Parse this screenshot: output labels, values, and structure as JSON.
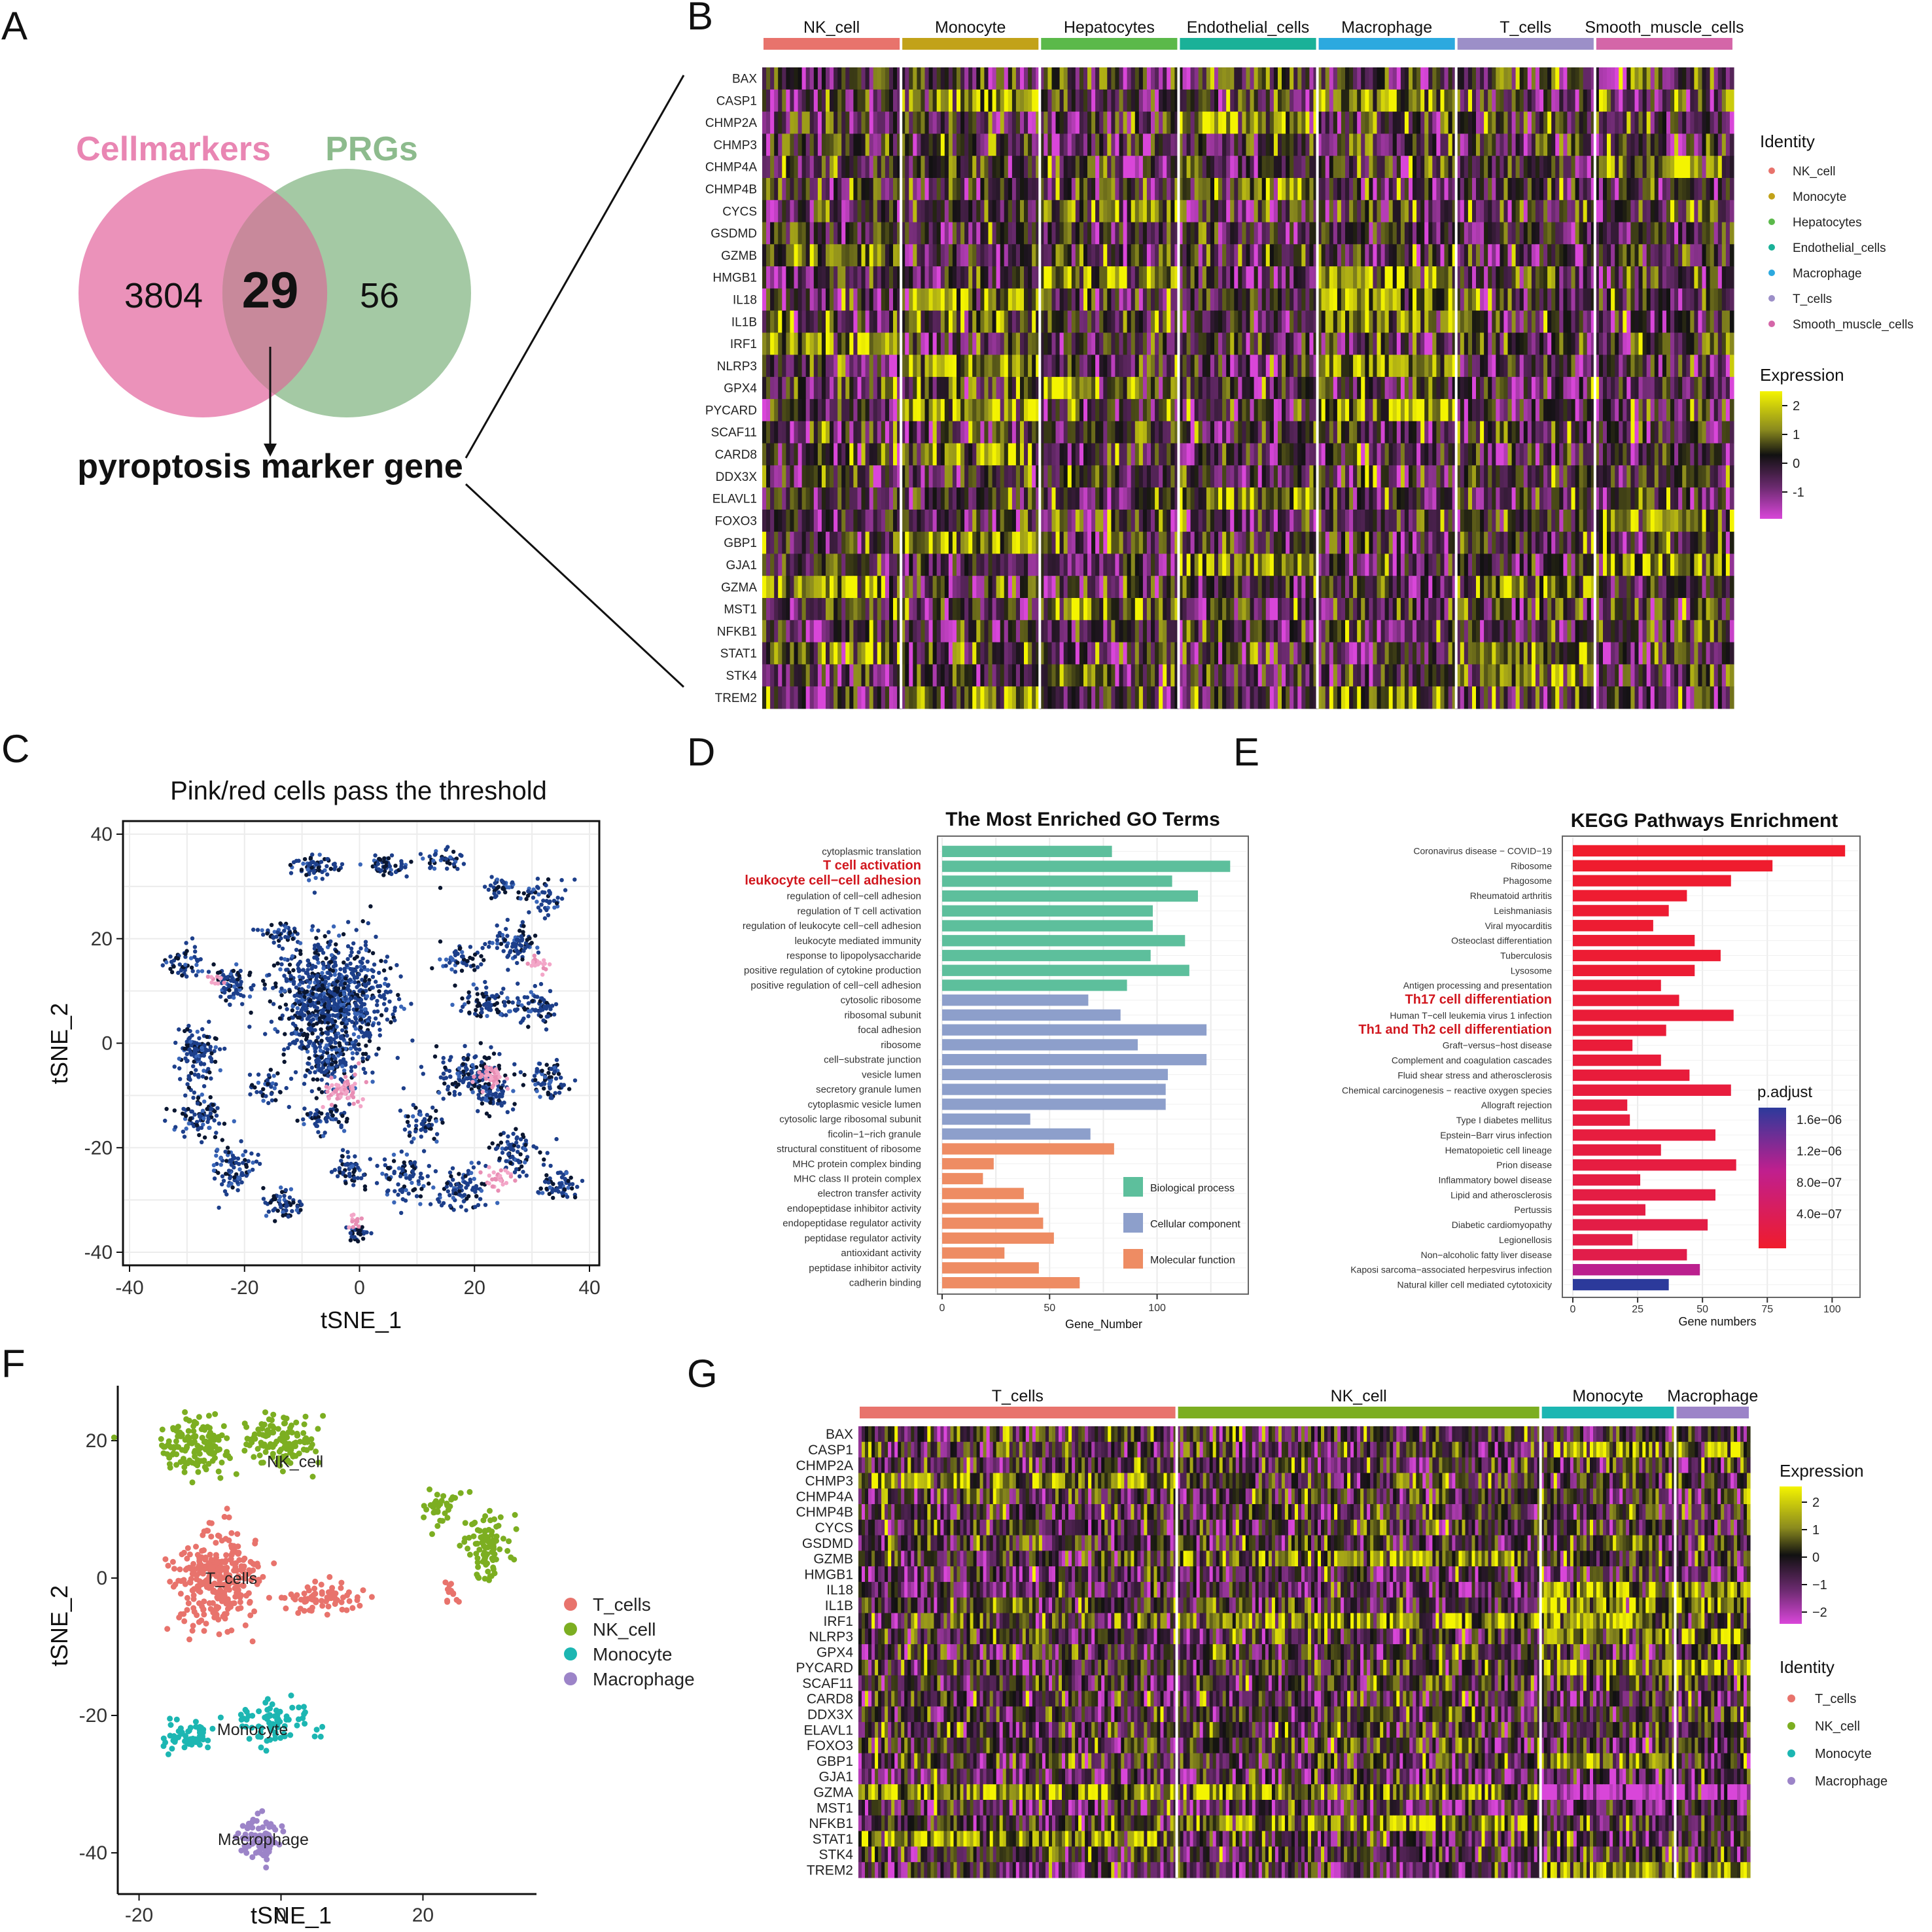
{
  "colors": {
    "nk_cell": "#E8736C",
    "monocyte": "#C2A219",
    "hepatocytes": "#5BB94A",
    "endothelial_cells": "#1AB198",
    "macrophage": "#2CA9DF",
    "t_cells": "#9C8FC8",
    "smooth_muscle_cells": "#D466A8",
    "venn_left": "#E986B3",
    "venn_right": "#8DBB8D",
    "go_bp": "#5DBF9C",
    "go_cc": "#8D9FCB",
    "go_mf": "#EE8C63",
    "f_tcells": "#E8736C",
    "f_nk": "#7CAE21",
    "f_mono": "#1CB6B2",
    "f_macro": "#9C84C8",
    "highlight_red": "#D1171E"
  },
  "panels": {
    "A": "A",
    "B": "B",
    "C": "C",
    "D": "D",
    "E": "E",
    "F": "F",
    "G": "G"
  },
  "panel_a": {
    "left_set": "Cellmarkers",
    "right_set": "PRGs",
    "left_only": "3804",
    "overlap": "29",
    "right_only": "56",
    "caption": "pyroptosis marker gene"
  },
  "genes": [
    "BAX",
    "CASP1",
    "CHMP2A",
    "CHMP3",
    "CHMP4A",
    "CHMP4B",
    "CYCS",
    "GSDMD",
    "GZMB",
    "HMGB1",
    "IL18",
    "IL1B",
    "IRF1",
    "NLRP3",
    "GPX4",
    "PYCARD",
    "SCAF11",
    "CARD8",
    "DDX3X",
    "ELAVL1",
    "FOXO3",
    "GBP1",
    "GJA1",
    "GZMA",
    "MST1",
    "NFKB1",
    "STAT1",
    "STK4",
    "TREM2"
  ],
  "panel_b": {
    "groups": [
      "NK_cell",
      "Monocyte",
      "Hepatocytes",
      "Endothelial_cells",
      "Macrophage",
      "T_cells",
      "Smooth_muscle_cells"
    ],
    "identity_title": "Identity",
    "identity_items": [
      "NK_cell",
      "Monocyte",
      "Hepatocytes",
      "Endothelial_cells",
      "Macrophage",
      "T_cells",
      "Smooth_muscle_cells"
    ],
    "expression_title": "Expression",
    "expression_ticks": [
      "2",
      "1",
      "0",
      "-1"
    ]
  },
  "panel_c": {
    "title": "Pink/red cells pass the threshold",
    "xlabel": "tSNE_1",
    "ylabel": "tSNE_2",
    "xticks": [
      "-40",
      "-20",
      "0",
      "20",
      "40"
    ],
    "yticks": [
      "40",
      "20",
      "0",
      "-20",
      "-40"
    ]
  },
  "panel_g": {
    "groups": [
      "T_cells",
      "NK_cell",
      "Monocyte",
      "Macrophage"
    ],
    "expression_title": "Expression",
    "expression_ticks": [
      "2",
      "1",
      "0",
      "−1",
      "−2"
    ],
    "identity_title": "Identity",
    "identity_items": [
      "T_cells",
      "NK_cell",
      "Monocyte",
      "Macrophage"
    ]
  },
  "chart_data": [
    {
      "type": "bar",
      "panel": "D",
      "title": "The Most Enriched GO Terms",
      "xlabel": "Gene_Number",
      "ylabel": "",
      "xlim": [
        0,
        140
      ],
      "xticks": [
        "0",
        "50",
        "100"
      ],
      "categories": [
        "cytoplasmic translation",
        "T cell activation",
        "leukocyte cell−cell adhesion",
        "regulation of cell−cell adhesion",
        "regulation of T cell activation",
        "regulation of leukocyte cell−cell adhesion",
        "leukocyte mediated immunity",
        "response to lipopolysaccharide",
        "positive regulation of cytokine production",
        "positive regulation of cell−cell adhesion",
        "cytosolic ribosome",
        "ribosomal subunit",
        "focal adhesion",
        "ribosome",
        "cell−substrate junction",
        "vesicle lumen",
        "secretory granule lumen",
        "cytoplasmic vesicle lumen",
        "cytosolic large ribosomal subunit",
        "ficolin−1−rich granule",
        "structural constituent of ribosome",
        "MHC protein complex binding",
        "MHC class II protein complex",
        "electron transfer activity",
        "endopeptidase inhibitor activity",
        "endopeptidase regulator activity",
        "peptidase regulator activity",
        "antioxidant activity",
        "peptidase inhibitor activity",
        "cadherin binding"
      ],
      "values": [
        79,
        134,
        107,
        119,
        98,
        98,
        113,
        97,
        115,
        86,
        68,
        83,
        123,
        91,
        123,
        105,
        104,
        104,
        41,
        69,
        80,
        24,
        19,
        38,
        45,
        47,
        52,
        29,
        45,
        64
      ],
      "ontology": [
        "BP",
        "BP",
        "BP",
        "BP",
        "BP",
        "BP",
        "BP",
        "BP",
        "BP",
        "BP",
        "CC",
        "CC",
        "CC",
        "CC",
        "CC",
        "CC",
        "CC",
        "CC",
        "CC",
        "CC",
        "MF",
        "MF",
        "MF",
        "MF",
        "MF",
        "MF",
        "MF",
        "MF",
        "MF",
        "MF"
      ],
      "highlighted": [
        "T cell activation",
        "leukocyte cell−cell adhesion"
      ],
      "legend": [
        "Biological process",
        "Cellular component",
        "Molecular function"
      ]
    },
    {
      "type": "bar",
      "panel": "E",
      "title": "KEGG Pathways Enrichment",
      "xlabel": "Gene numbers",
      "ylabel": "",
      "xlim": [
        0,
        110
      ],
      "xticks": [
        "0",
        "25",
        "50",
        "75",
        "100"
      ],
      "categories": [
        "Coronavirus disease − COVID−19",
        "Ribosome",
        "Phagosome",
        "Rheumatoid arthritis",
        "Leishmaniasis",
        "Viral myocarditis",
        "Osteoclast differentiation",
        "Tuberculosis",
        "Lysosome",
        "Antigen processing and presentation",
        "Th17 cell differentiation",
        "Human T−cell leukemia virus 1 infection",
        "Th1 and Th2 cell differentiation",
        "Graft−versus−host disease",
        "Complement and coagulation cascades",
        "Fluid shear stress and atherosclerosis",
        "Chemical carcinogenesis − reactive oxygen species",
        "Allograft rejection",
        "Type I diabetes mellitus",
        "Epstein−Barr virus infection",
        "Hematopoietic cell lineage",
        "Prion disease",
        "Inflammatory bowel disease",
        "Lipid and atherosclerosis",
        "Pertussis",
        "Diabetic cardiomyopathy",
        "Legionellosis",
        "Non−alcoholic fatty liver disease",
        "Kaposi sarcoma−associated herpesvirus infection",
        "Natural killer cell mediated cytotoxicity"
      ],
      "values": [
        105,
        77,
        61,
        44,
        37,
        31,
        47,
        57,
        47,
        34,
        41,
        62,
        36,
        23,
        34,
        45,
        61,
        21,
        22,
        55,
        34,
        63,
        26,
        55,
        28,
        52,
        23,
        44,
        49,
        37
      ],
      "padj": [
        2e-07,
        2.2e-07,
        2.3e-07,
        2.4e-07,
        2.5e-07,
        2.5e-07,
        2.6e-07,
        2.6e-07,
        2.7e-07,
        2.8e-07,
        2.9e-07,
        3e-07,
        3e-07,
        3.1e-07,
        3.2e-07,
        3.3e-07,
        3.4e-07,
        3.5e-07,
        3.5e-07,
        3.6e-07,
        3.7e-07,
        3.8e-07,
        3.9e-07,
        4e-07,
        4.1e-07,
        4.2e-07,
        4.3e-07,
        4.5e-07,
        1.05e-06,
        1.7e-06
      ],
      "highlighted": [
        "Th17 cell differentiation",
        "Th1 and Th2 cell differentiation"
      ],
      "colorbar_title": "p.adjust",
      "colorbar_ticks": [
        "1.6e−06",
        "1.2e−06",
        "8.0e−07",
        "4.0e−07"
      ]
    },
    {
      "type": "scatter",
      "panel": "F",
      "xlabel": "tSNE_1",
      "ylabel": "tSNE_2",
      "xlim": [
        -23,
        36
      ],
      "ylim": [
        -46,
        28
      ],
      "xticks": [
        -20,
        0,
        20
      ],
      "yticks": [
        20,
        0,
        -20,
        -40
      ],
      "series": [
        {
          "name": "T_cells",
          "label": "T_cells",
          "clusters": [
            {
              "cx": -9,
              "cy": 0,
              "sx": 5,
              "sy": 6,
              "n": 300
            },
            {
              "cx": 6,
              "cy": -3,
              "sx": 5,
              "sy": 1.8,
              "n": 70
            },
            {
              "cx": 24,
              "cy": -2,
              "sx": 1.4,
              "sy": 2,
              "n": 12
            }
          ]
        },
        {
          "name": "NK_cell",
          "label": "NK_cell",
          "clusters": [
            {
              "cx": -12,
              "cy": 19,
              "sx": 4,
              "sy": 3.2,
              "n": 140
            },
            {
              "cx": 0,
              "cy": 20,
              "sx": 4,
              "sy": 3,
              "n": 120
            },
            {
              "cx": 22,
              "cy": 10,
              "sx": 2.2,
              "sy": 2,
              "n": 35
            },
            {
              "cx": 29,
              "cy": 5,
              "sx": 3,
              "sy": 4,
              "n": 90
            }
          ]
        },
        {
          "name": "Monocyte",
          "label": "Monocyte",
          "clusters": [
            {
              "cx": -13,
              "cy": -23,
              "sx": 3,
              "sy": 2.2,
              "n": 55
            },
            {
              "cx": -1,
              "cy": -21,
              "sx": 4,
              "sy": 2.6,
              "n": 75
            }
          ]
        },
        {
          "name": "Macrophage",
          "label": "Macrophage",
          "clusters": [
            {
              "cx": -3,
              "cy": -38,
              "sx": 2.2,
              "sy": 2.6,
              "n": 75
            }
          ]
        }
      ],
      "legend": [
        "T_cells",
        "NK_cell",
        "Monocyte",
        "Macrophage"
      ]
    }
  ]
}
